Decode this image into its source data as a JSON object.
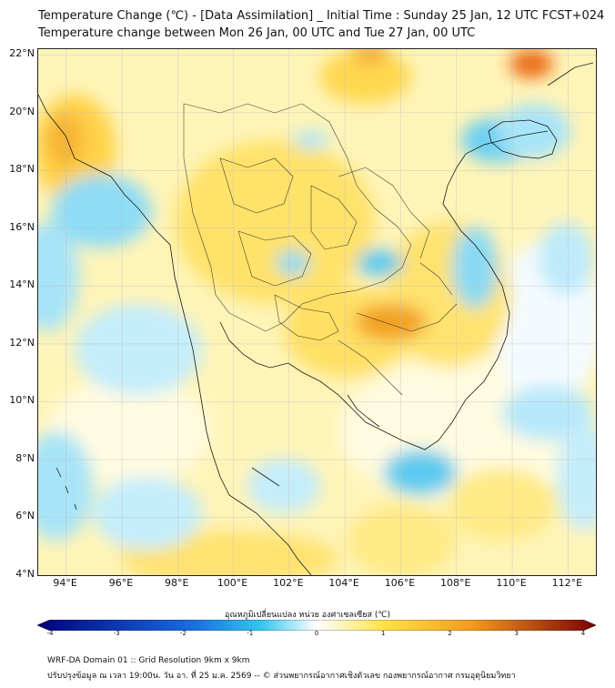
{
  "title": {
    "line1": "Temperature Change (℃) - [Data Assimilation] _ Initial Time : Sunday 25 Jan, 12 UTC FCST+024",
    "line2": "Temperature change between Mon 26 Jan, 00 UTC and Tue 27 Jan, 00 UTC"
  },
  "map": {
    "lat_labels": [
      "22°N",
      "20°N",
      "18°N",
      "16°N",
      "14°N",
      "12°N",
      "10°N",
      "8°N",
      "6°N",
      "4°N"
    ],
    "lon_labels": [
      "94°E",
      "96°E",
      "98°E",
      "100°E",
      "102°E",
      "104°E",
      "106°E",
      "108°E",
      "110°E",
      "112°E"
    ],
    "lat_values": [
      22,
      20,
      18,
      16,
      14,
      12,
      10,
      8,
      6,
      4
    ],
    "lon_values": [
      94,
      96,
      98,
      100,
      102,
      104,
      106,
      108,
      110,
      112
    ],
    "extent": {
      "lon_min": 93.0,
      "lon_max": 113.0,
      "lat_min": 4.0,
      "lat_max": 22.2
    }
  },
  "colorbar": {
    "title": "อุณหภูมิเปลี่ยนแปลง หน่วย องศาเซลเซียส (℃)",
    "tick_labels": [
      "-4",
      "-3",
      "-2",
      "-1",
      "0",
      "1",
      "2",
      "3",
      "4"
    ],
    "tick_values": [
      -4,
      -3,
      -2,
      -1,
      0,
      1,
      2,
      3,
      4
    ],
    "colors": {
      "min": "#00007a",
      "neg": "#1a6ee0",
      "cyan": "#33c6ee",
      "zero": "#ffffff",
      "pos": "#ffe34a",
      "warm": "#f29a20",
      "max": "#7a0000"
    }
  },
  "footer": {
    "line1": "WRF-DA Domain 01 :: Grid Resolution 9km x 9km",
    "line2": "ปรับปรุงข้อมูล ณ เวลา 19:00น. วัน อา. ที่ 25 ม.ค. 2569 -- © ส่วนพยากรณ์อากาศเชิงตัวเลข กองพยากรณ์อากาศ กรมอุตุนิยมวิทยา"
  }
}
